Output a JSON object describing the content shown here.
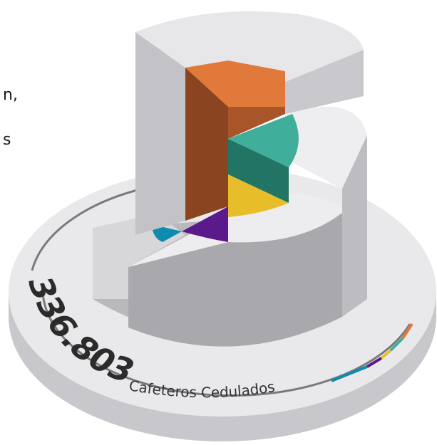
{
  "fragments": [
    "n,",
    "s"
  ],
  "total": "336.803",
  "caption": "Cafeteros Cedulados"
}
